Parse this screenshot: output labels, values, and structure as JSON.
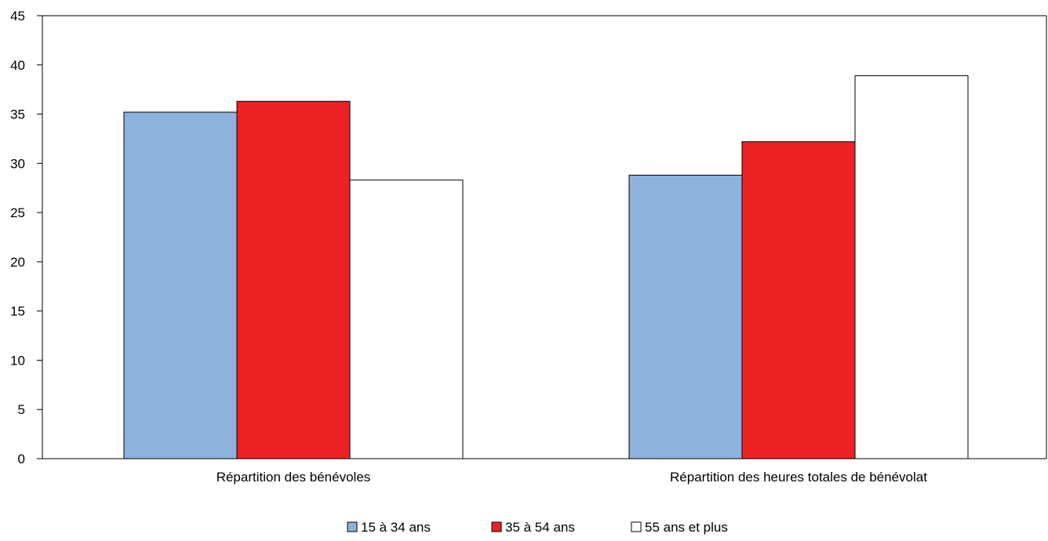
{
  "chart_data": {
    "type": "bar",
    "title": "",
    "xlabel": "",
    "ylabel": "",
    "ylim": [
      0,
      45
    ],
    "yticks": [
      0,
      5,
      10,
      15,
      20,
      25,
      30,
      35,
      40,
      45
    ],
    "grid": false,
    "legend_position": "bottom",
    "categories": [
      "Répartition des bénévoles",
      "Répartition des heures totales de bénévolat"
    ],
    "series": [
      {
        "name": "15 à 34 ans",
        "color": "#8db3dc",
        "values": [
          35.2,
          28.8
        ]
      },
      {
        "name": "35 à 54 ans",
        "color": "#ed2224",
        "values": [
          36.3,
          32.2
        ]
      },
      {
        "name": "55 ans et plus",
        "color": "#ffffff",
        "values": [
          28.3,
          38.9
        ]
      }
    ]
  }
}
